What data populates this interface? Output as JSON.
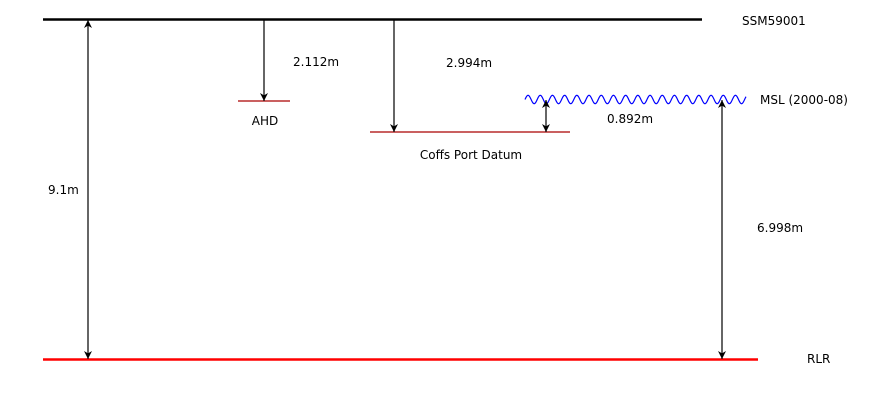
{
  "colors": {
    "ssm_line": "#000000",
    "rlr_line": "#ff0000",
    "datum_line": "#aa0000",
    "msl_wave": "#0000ff",
    "arrows": "#000000"
  },
  "levels": {
    "ssm": "SSM59001",
    "msl": "MSL (2000-08)",
    "ahd": "AHD",
    "cpd": "Coffs Port Datum",
    "rlr": "RLR"
  },
  "measurements": {
    "ssm_to_rlr": "9.1m",
    "ssm_to_ahd": "2.112m",
    "ssm_to_cpd": "2.994m",
    "cpd_to_msl": "0.892m",
    "msl_to_rlr": "6.998m"
  }
}
